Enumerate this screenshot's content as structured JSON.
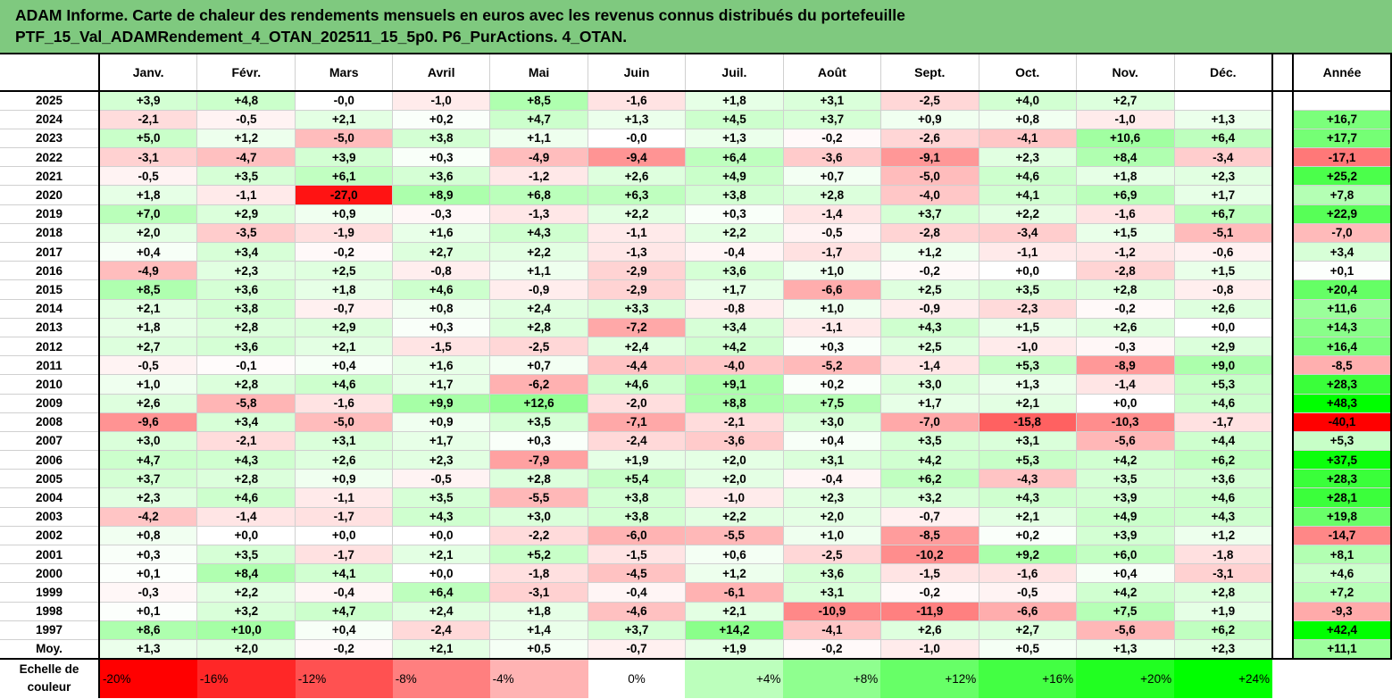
{
  "title": {
    "line1": "ADAM Informe. Carte de chaleur des rendements mensuels en euros avec les revenus connus distribués du portefeuille",
    "line2": "PTF_15_Val_ADAMRendement_4_OTAN_202511_15_5p0. P6_PurActions. 4_OTAN."
  },
  "colors": {
    "title_bg": "#7fc97f",
    "negative": "#ff0000",
    "positive": "#00ff00",
    "neutral": "#ffffff"
  },
  "chart_data": {
    "type": "heatmap",
    "columns": [
      "Janv.",
      "Févr.",
      "Mars",
      "Avril",
      "Mai",
      "Juin",
      "Juil.",
      "Août",
      "Sept.",
      "Oct.",
      "Nov.",
      "Déc."
    ],
    "annual_header": "Année",
    "rows": [
      {
        "year": "2025",
        "values": [
          "+3,9",
          "+4,8",
          "-0,0",
          "-1,0",
          "+8,5",
          "-1,6",
          "+1,8",
          "+3,1",
          "-2,5",
          "+4,0",
          "+2,7",
          ""
        ],
        "annual": ""
      },
      {
        "year": "2024",
        "values": [
          "-2,1",
          "-0,5",
          "+2,1",
          "+0,2",
          "+4,7",
          "+1,3",
          "+4,5",
          "+3,7",
          "+0,9",
          "+0,8",
          "-1,0",
          "+1,3"
        ],
        "annual": "+16,7"
      },
      {
        "year": "2023",
        "values": [
          "+5,0",
          "+1,2",
          "-5,0",
          "+3,8",
          "+1,1",
          "-0,0",
          "+1,3",
          "-0,2",
          "-2,6",
          "-4,1",
          "+10,6",
          "+6,4"
        ],
        "annual": "+17,7"
      },
      {
        "year": "2022",
        "values": [
          "-3,1",
          "-4,7",
          "+3,9",
          "+0,3",
          "-4,9",
          "-9,4",
          "+6,4",
          "-3,6",
          "-9,1",
          "+2,3",
          "+8,4",
          "-3,4"
        ],
        "annual": "-17,1"
      },
      {
        "year": "2021",
        "values": [
          "-0,5",
          "+3,5",
          "+6,1",
          "+3,6",
          "-1,2",
          "+2,6",
          "+4,9",
          "+0,7",
          "-5,0",
          "+4,6",
          "+1,8",
          "+2,3"
        ],
        "annual": "+25,2"
      },
      {
        "year": "2020",
        "values": [
          "+1,8",
          "-1,1",
          "-27,0",
          "+8,9",
          "+6,8",
          "+6,3",
          "+3,8",
          "+2,8",
          "-4,0",
          "+4,1",
          "+6,9",
          "+1,7"
        ],
        "annual": "+7,8"
      },
      {
        "year": "2019",
        "values": [
          "+7,0",
          "+2,9",
          "+0,9",
          "-0,3",
          "-1,3",
          "+2,2",
          "+0,3",
          "-1,4",
          "+3,7",
          "+2,2",
          "-1,6",
          "+6,7"
        ],
        "annual": "+22,9"
      },
      {
        "year": "2018",
        "values": [
          "+2,0",
          "-3,5",
          "-1,9",
          "+1,6",
          "+4,3",
          "-1,1",
          "+2,2",
          "-0,5",
          "-2,8",
          "-3,4",
          "+1,5",
          "-5,1"
        ],
        "annual": "-7,0"
      },
      {
        "year": "2017",
        "values": [
          "+0,4",
          "+3,4",
          "-0,2",
          "+2,7",
          "+2,2",
          "-1,3",
          "-0,4",
          "-1,7",
          "+1,2",
          "-1,1",
          "-1,2",
          "-0,6"
        ],
        "annual": "+3,4"
      },
      {
        "year": "2016",
        "values": [
          "-4,9",
          "+2,3",
          "+2,5",
          "-0,8",
          "+1,1",
          "-2,9",
          "+3,6",
          "+1,0",
          "-0,2",
          "+0,0",
          "-2,8",
          "+1,5"
        ],
        "annual": "+0,1"
      },
      {
        "year": "2015",
        "values": [
          "+8,5",
          "+3,6",
          "+1,8",
          "+4,6",
          "-0,9",
          "-2,9",
          "+1,7",
          "-6,6",
          "+2,5",
          "+3,5",
          "+2,8",
          "-0,8"
        ],
        "annual": "+20,4"
      },
      {
        "year": "2014",
        "values": [
          "+2,1",
          "+3,8",
          "-0,7",
          "+0,8",
          "+2,4",
          "+3,3",
          "-0,8",
          "+1,0",
          "-0,9",
          "-2,3",
          "-0,2",
          "+2,6"
        ],
        "annual": "+11,6"
      },
      {
        "year": "2013",
        "values": [
          "+1,8",
          "+2,8",
          "+2,9",
          "+0,3",
          "+2,8",
          "-7,2",
          "+3,4",
          "-1,1",
          "+4,3",
          "+1,5",
          "+2,6",
          "+0,0"
        ],
        "annual": "+14,3"
      },
      {
        "year": "2012",
        "values": [
          "+2,7",
          "+3,6",
          "+2,1",
          "-1,5",
          "-2,5",
          "+2,4",
          "+4,2",
          "+0,3",
          "+2,5",
          "-1,0",
          "-0,3",
          "+2,9"
        ],
        "annual": "+16,4"
      },
      {
        "year": "2011",
        "values": [
          "-0,5",
          "-0,1",
          "+0,4",
          "+1,6",
          "+0,7",
          "-4,4",
          "-4,0",
          "-5,2",
          "-1,4",
          "+5,3",
          "-8,9",
          "+9,0"
        ],
        "annual": "-8,5"
      },
      {
        "year": "2010",
        "values": [
          "+1,0",
          "+2,8",
          "+4,6",
          "+1,7",
          "-6,2",
          "+4,6",
          "+9,1",
          "+0,2",
          "+3,0",
          "+1,3",
          "-1,4",
          "+5,3"
        ],
        "annual": "+28,3"
      },
      {
        "year": "2009",
        "values": [
          "+2,6",
          "-5,8",
          "-1,6",
          "+9,9",
          "+12,6",
          "-2,0",
          "+8,8",
          "+7,5",
          "+1,7",
          "+2,1",
          "+0,0",
          "+4,6"
        ],
        "annual": "+48,3"
      },
      {
        "year": "2008",
        "values": [
          "-9,6",
          "+3,4",
          "-5,0",
          "+0,9",
          "+3,5",
          "-7,1",
          "-2,1",
          "+3,0",
          "-7,0",
          "-15,8",
          "-10,3",
          "-1,7"
        ],
        "annual": "-40,1"
      },
      {
        "year": "2007",
        "values": [
          "+3,0",
          "-2,1",
          "+3,1",
          "+1,7",
          "+0,3",
          "-2,4",
          "-3,6",
          "+0,4",
          "+3,5",
          "+3,1",
          "-5,6",
          "+4,4"
        ],
        "annual": "+5,3"
      },
      {
        "year": "2006",
        "values": [
          "+4,7",
          "+4,3",
          "+2,6",
          "+2,3",
          "-7,9",
          "+1,9",
          "+2,0",
          "+3,1",
          "+4,2",
          "+5,3",
          "+4,2",
          "+6,2"
        ],
        "annual": "+37,5"
      },
      {
        "year": "2005",
        "values": [
          "+3,7",
          "+2,8",
          "+0,9",
          "-0,5",
          "+2,8",
          "+5,4",
          "+2,0",
          "-0,4",
          "+6,2",
          "-4,3",
          "+3,5",
          "+3,6"
        ],
        "annual": "+28,3"
      },
      {
        "year": "2004",
        "values": [
          "+2,3",
          "+4,6",
          "-1,1",
          "+3,5",
          "-5,5",
          "+3,8",
          "-1,0",
          "+2,3",
          "+3,2",
          "+4,3",
          "+3,9",
          "+4,6"
        ],
        "annual": "+28,1"
      },
      {
        "year": "2003",
        "values": [
          "-4,2",
          "-1,4",
          "-1,7",
          "+4,3",
          "+3,0",
          "+3,8",
          "+2,2",
          "+2,0",
          "-0,7",
          "+2,1",
          "+4,9",
          "+4,3"
        ],
        "annual": "+19,8"
      },
      {
        "year": "2002",
        "values": [
          "+0,8",
          "+0,0",
          "+0,0",
          "+0,0",
          "-2,2",
          "-6,0",
          "-5,5",
          "+1,0",
          "-8,5",
          "+0,2",
          "+3,9",
          "+1,2"
        ],
        "annual": "-14,7"
      },
      {
        "year": "2001",
        "values": [
          "+0,3",
          "+3,5",
          "-1,7",
          "+2,1",
          "+5,2",
          "-1,5",
          "+0,6",
          "-2,5",
          "-10,2",
          "+9,2",
          "+6,0",
          "-1,8"
        ],
        "annual": "+8,1"
      },
      {
        "year": "2000",
        "values": [
          "+0,1",
          "+8,4",
          "+4,1",
          "+0,0",
          "-1,8",
          "-4,5",
          "+1,2",
          "+3,6",
          "-1,5",
          "-1,6",
          "+0,4",
          "-3,1"
        ],
        "annual": "+4,6"
      },
      {
        "year": "1999",
        "values": [
          "-0,3",
          "+2,2",
          "-0,4",
          "+6,4",
          "-3,1",
          "-0,4",
          "-6,1",
          "+3,1",
          "-0,2",
          "-0,5",
          "+4,2",
          "+2,8"
        ],
        "annual": "+7,2"
      },
      {
        "year": "1998",
        "values": [
          "+0,1",
          "+3,2",
          "+4,7",
          "+2,4",
          "+1,8",
          "-4,6",
          "+2,1",
          "-10,9",
          "-11,9",
          "-6,6",
          "+7,5",
          "+1,9"
        ],
        "annual": "-9,3"
      },
      {
        "year": "1997",
        "values": [
          "+8,6",
          "+10,0",
          "+0,4",
          "-2,4",
          "+1,4",
          "+3,7",
          "+14,2",
          "-4,1",
          "+2,6",
          "+2,7",
          "-5,6",
          "+6,2"
        ],
        "annual": "+42,4"
      }
    ],
    "average": {
      "label": "Moy.",
      "values": [
        "+1,3",
        "+2,0",
        "-0,2",
        "+2,1",
        "+0,5",
        "-0,7",
        "+1,9",
        "-0,2",
        "-1,0",
        "+0,5",
        "+1,3",
        "+2,3"
      ],
      "annual": "+11,1"
    },
    "scale": {
      "label_line1": "Echelle de",
      "label_line2": "couleur",
      "steps": [
        "-20%",
        "-16%",
        "-12%",
        "-8%",
        "-4%",
        "0%",
        "+4%",
        "+8%",
        "+12%",
        "+16%",
        "+20%",
        "+24%"
      ],
      "step_values": [
        -20,
        -16,
        -12,
        -8,
        -4,
        0,
        4,
        8,
        12,
        16,
        20,
        24
      ]
    }
  }
}
